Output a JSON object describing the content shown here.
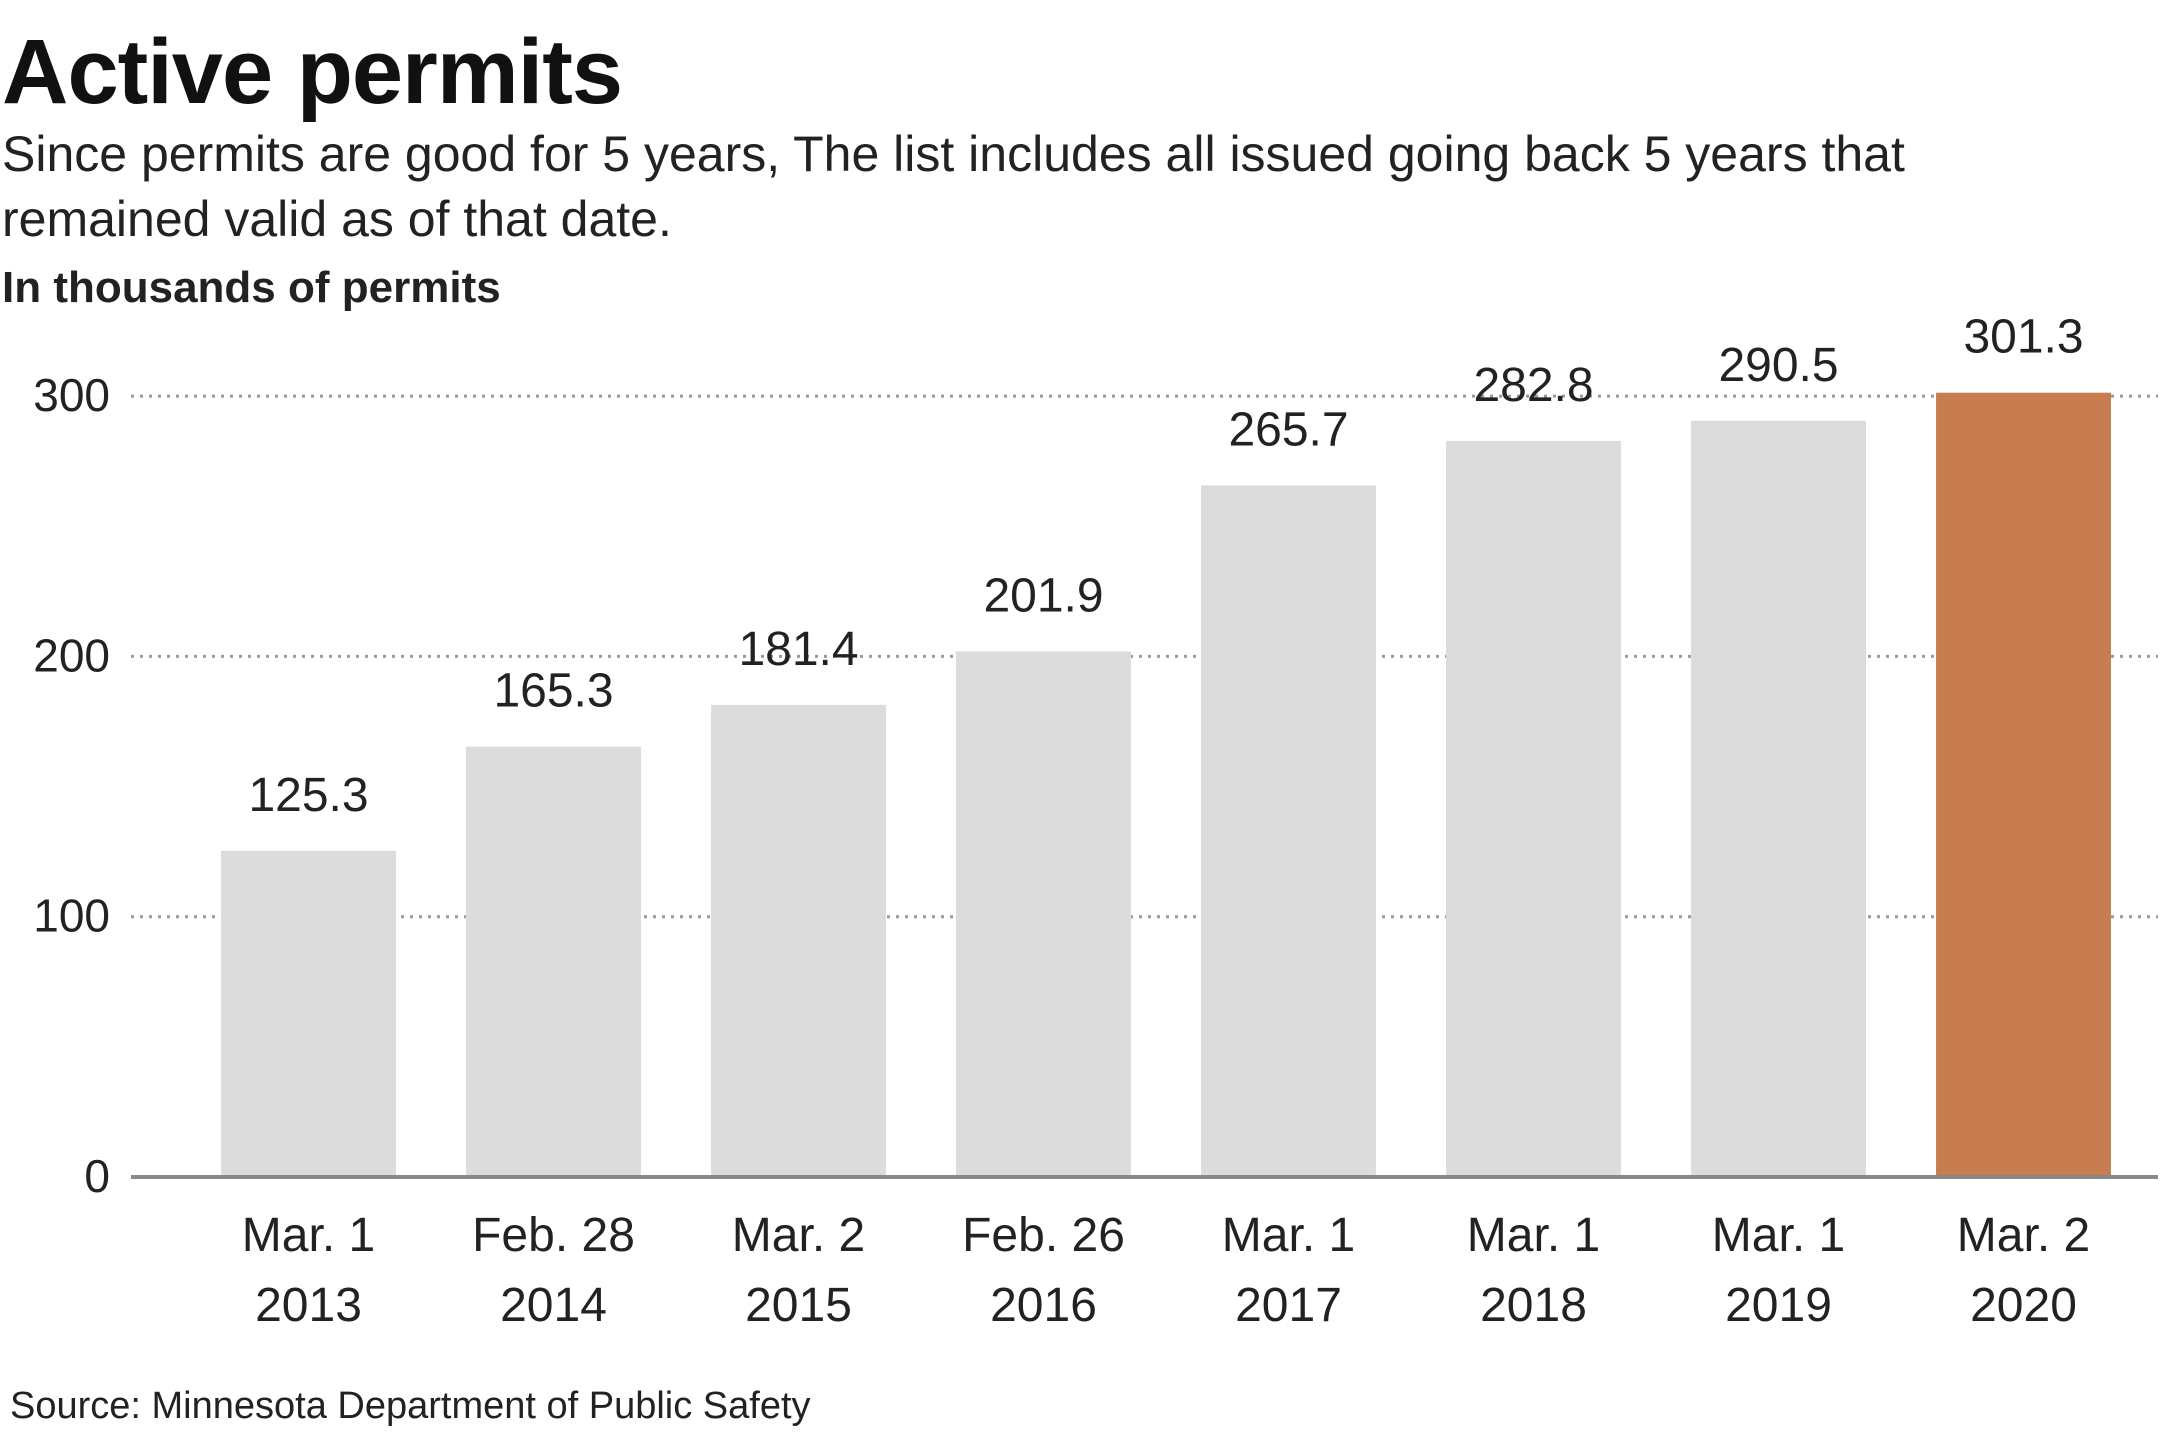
{
  "chart_data": {
    "type": "bar",
    "title": "Active permits",
    "subtitle": "Since permits are good for 5 years, The list includes all issued going back 5 years that remained valid as of that date.",
    "y_label": "In thousands of permits",
    "source": "Source: Minnesota Department of Public Safety",
    "categories": [
      [
        "Mar. 1",
        "2013"
      ],
      [
        "Feb. 28",
        "2014"
      ],
      [
        "Mar. 2",
        "2015"
      ],
      [
        "Feb. 26",
        "2016"
      ],
      [
        "Mar. 1",
        "2017"
      ],
      [
        "Mar. 1",
        "2018"
      ],
      [
        "Mar. 1",
        "2019"
      ],
      [
        "Mar. 2",
        "2020"
      ]
    ],
    "values": [
      125.3,
      165.3,
      181.4,
      201.9,
      265.7,
      282.8,
      290.5,
      301.3
    ],
    "colors": [
      "#dcdcdc",
      "#dcdcdc",
      "#dcdcdc",
      "#dcdcdc",
      "#dcdcdc",
      "#dcdcdc",
      "#dcdcdc",
      "#c87d50"
    ],
    "ylim": [
      0,
      320
    ],
    "yticks": [
      0,
      100,
      200,
      300
    ],
    "grid": true
  }
}
